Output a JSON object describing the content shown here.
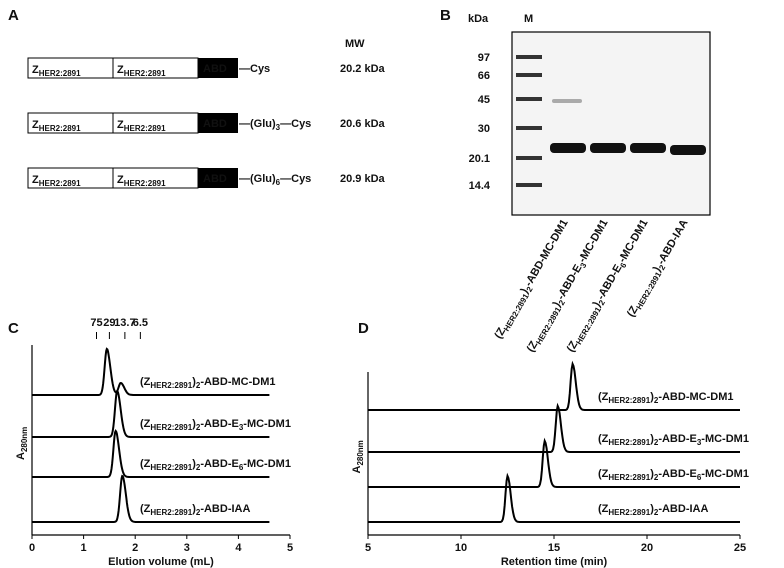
{
  "panel_a": {
    "label": "A",
    "mw_header": "MW",
    "domain": [
      {
        "text": "Z"
      },
      {
        "sub": "HER2:2891"
      }
    ],
    "abd": "ABD",
    "constructs": [
      {
        "linker": [
          {
            "text": "—Cys"
          }
        ],
        "mw": "20.2 kDa"
      },
      {
        "linker": [
          {
            "text": "—(Glu)"
          },
          {
            "sub": "3"
          },
          {
            "text": "—Cys"
          }
        ],
        "mw": "20.6 kDa"
      },
      {
        "linker": [
          {
            "text": "—(Glu)"
          },
          {
            "sub": "6"
          },
          {
            "text": "—Cys"
          }
        ],
        "mw": "20.9 kDa"
      }
    ]
  },
  "panel_b": {
    "label": "B",
    "unit": "kDa",
    "ladder_header": "M",
    "markers": [
      "97",
      "66",
      "45",
      "30",
      "20.1",
      "14.4"
    ],
    "lanes": [
      [
        {
          "text": "(Z"
        },
        {
          "sub": "HER2:2891"
        },
        {
          "text": ")"
        },
        {
          "sub": "2"
        },
        {
          "text": "-ABD-MC-DM1"
        }
      ],
      [
        {
          "text": "(Z"
        },
        {
          "sub": "HER2:2891"
        },
        {
          "text": ")"
        },
        {
          "sub": "2"
        },
        {
          "text": "-ABD-E"
        },
        {
          "sub": "3"
        },
        {
          "text": "-MC-DM1"
        }
      ],
      [
        {
          "text": "(Z"
        },
        {
          "sub": "HER2:2891"
        },
        {
          "text": ")"
        },
        {
          "sub": "2"
        },
        {
          "text": "-ABD-E"
        },
        {
          "sub": "6"
        },
        {
          "text": "-MC-DM1"
        }
      ],
      [
        {
          "text": "(Z"
        },
        {
          "sub": "HER2:2891"
        },
        {
          "text": ")"
        },
        {
          "sub": "2"
        },
        {
          "text": "-ABD-IAA"
        }
      ]
    ]
  },
  "panel_c": {
    "label": "C",
    "y_label": [
      {
        "text": "A"
      },
      {
        "sub": "280nm"
      }
    ],
    "x_label": "Elution volume (mL)",
    "xlim": [
      0,
      5
    ],
    "xticks": [
      0,
      1,
      2,
      3,
      4,
      5
    ],
    "standards": [
      {
        "value": 1.25,
        "label": "75"
      },
      {
        "value": 1.5,
        "label": "29"
      },
      {
        "value": 1.8,
        "label": "13.7"
      },
      {
        "value": 2.1,
        "label": "6.5"
      }
    ],
    "traces": [
      {
        "name": [
          {
            "text": "(Z"
          },
          {
            "sub": "HER2:2891"
          },
          {
            "text": ")"
          },
          {
            "sub": "2"
          },
          {
            "text": "-ABD-MC-DM1"
          }
        ],
        "peaks": [
          1.45,
          1.72
        ]
      },
      {
        "name": [
          {
            "text": "(Z"
          },
          {
            "sub": "HER2:2891"
          },
          {
            "text": ")"
          },
          {
            "sub": "2"
          },
          {
            "text": "-ABD-E"
          },
          {
            "sub": "3"
          },
          {
            "text": "-MC-DM1"
          }
        ],
        "peaks": [
          1.65
        ]
      },
      {
        "name": [
          {
            "text": "(Z"
          },
          {
            "sub": "HER2:2891"
          },
          {
            "text": ")"
          },
          {
            "sub": "2"
          },
          {
            "text": "-ABD-E"
          },
          {
            "sub": "6"
          },
          {
            "text": "-MC-DM1"
          }
        ],
        "peaks": [
          1.62
        ]
      },
      {
        "name": [
          {
            "text": "(Z"
          },
          {
            "sub": "HER2:2891"
          },
          {
            "text": ")"
          },
          {
            "sub": "2"
          },
          {
            "text": "-ABD-IAA"
          }
        ],
        "peaks": [
          1.75
        ]
      }
    ]
  },
  "panel_d": {
    "label": "D",
    "y_label": [
      {
        "text": "A"
      },
      {
        "sub": "280nm"
      }
    ],
    "x_label": "Retention time (min)",
    "xlim": [
      5,
      25
    ],
    "xticks": [
      5,
      10,
      15,
      20,
      25
    ],
    "traces": [
      {
        "name": [
          {
            "text": "(Z"
          },
          {
            "sub": "HER2:2891"
          },
          {
            "text": ")"
          },
          {
            "sub": "2"
          },
          {
            "text": "-ABD-MC-DM1"
          }
        ],
        "peaks": [
          16.0
        ]
      },
      {
        "name": [
          {
            "text": "(Z"
          },
          {
            "sub": "HER2:2891"
          },
          {
            "text": ")"
          },
          {
            "sub": "2"
          },
          {
            "text": "-ABD-E"
          },
          {
            "sub": "3"
          },
          {
            "text": "-MC-DM1"
          }
        ],
        "peaks": [
          15.2
        ]
      },
      {
        "name": [
          {
            "text": "(Z"
          },
          {
            "sub": "HER2:2891"
          },
          {
            "text": ")"
          },
          {
            "sub": "2"
          },
          {
            "text": "-ABD-E"
          },
          {
            "sub": "6"
          },
          {
            "text": "-MC-DM1"
          }
        ],
        "peaks": [
          14.5
        ]
      },
      {
        "name": [
          {
            "text": "(Z"
          },
          {
            "sub": "HER2:2891"
          },
          {
            "text": ")"
          },
          {
            "sub": "2"
          },
          {
            "text": "-ABD-IAA"
          }
        ],
        "peaks": [
          12.5
        ]
      }
    ]
  }
}
